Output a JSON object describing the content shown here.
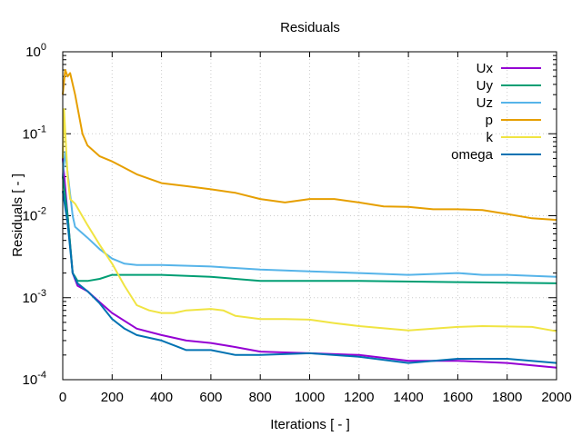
{
  "chart_data": {
    "type": "line",
    "title": "Residuals",
    "xlabel": "Iterations [ - ]",
    "ylabel": "Residuals [ - ]",
    "xlim": [
      0,
      2000
    ],
    "ylim": [
      0.0001,
      1
    ],
    "yscale": "log",
    "grid": true,
    "legend": "top-right",
    "xticks": [
      "0",
      "200",
      "400",
      "600",
      "800",
      "1000",
      "1200",
      "1400",
      "1600",
      "1800",
      "2000"
    ],
    "yticks": [
      {
        "base": "10",
        "exp": "-4"
      },
      {
        "base": "10",
        "exp": "-3"
      },
      {
        "base": "10",
        "exp": "-2"
      },
      {
        "base": "10",
        "exp": "-1"
      },
      {
        "base": "10",
        "exp": "0"
      }
    ],
    "series": [
      {
        "name": "Ux",
        "color": "#9400d3",
        "x": [
          0,
          20,
          40,
          60,
          100,
          150,
          200,
          300,
          400,
          500,
          600,
          700,
          800,
          1000,
          1200,
          1400,
          1600,
          1800,
          2000
        ],
        "y": [
          0.05,
          0.01,
          0.002,
          0.0014,
          0.0012,
          0.00088,
          0.00065,
          0.00042,
          0.00035,
          0.0003,
          0.00028,
          0.00025,
          0.00022,
          0.00021,
          0.0002,
          0.00017,
          0.00017,
          0.00016,
          0.00014
        ]
      },
      {
        "name": "Uy",
        "color": "#009e73",
        "x": [
          0,
          20,
          40,
          50,
          60,
          100,
          150,
          200,
          300,
          400,
          600,
          800,
          1000,
          1200,
          1600,
          2000
        ],
        "y": [
          0.03,
          0.01,
          0.002,
          0.0018,
          0.0016,
          0.0016,
          0.0017,
          0.0019,
          0.0019,
          0.0019,
          0.0018,
          0.0016,
          0.0016,
          0.0016,
          0.00155,
          0.0015
        ]
      },
      {
        "name": "Uz",
        "color": "#56b4e9",
        "x": [
          0,
          10,
          40,
          50,
          100,
          150,
          200,
          250,
          300,
          400,
          600,
          800,
          1000,
          1200,
          1400,
          1600,
          1700,
          1800,
          2000
        ],
        "y": [
          0.03,
          0.06,
          0.01,
          0.0073,
          0.0054,
          0.0039,
          0.003,
          0.0026,
          0.0025,
          0.0025,
          0.0024,
          0.0022,
          0.0021,
          0.002,
          0.0019,
          0.002,
          0.0019,
          0.0019,
          0.0018
        ]
      },
      {
        "name": "p",
        "color": "#e69f00",
        "x": [
          0,
          10,
          20,
          30,
          50,
          80,
          100,
          150,
          200,
          300,
          400,
          500,
          600,
          700,
          800,
          900,
          1000,
          1100,
          1200,
          1300,
          1400,
          1500,
          1600,
          1700,
          1800,
          1900,
          2000
        ],
        "y": [
          0.3,
          0.6,
          0.5,
          0.55,
          0.3,
          0.1,
          0.072,
          0.053,
          0.046,
          0.032,
          0.025,
          0.023,
          0.021,
          0.019,
          0.016,
          0.0145,
          0.016,
          0.016,
          0.0145,
          0.013,
          0.0128,
          0.012,
          0.012,
          0.0117,
          0.0105,
          0.0093,
          0.0089
        ]
      },
      {
        "name": "k",
        "color": "#f0e442",
        "x": [
          0,
          5,
          20,
          30,
          50,
          100,
          150,
          200,
          250,
          300,
          350,
          400,
          450,
          500,
          600,
          650,
          700,
          800,
          900,
          1000,
          1100,
          1200,
          1400,
          1600,
          1700,
          1900,
          2000
        ],
        "y": [
          0.05,
          0.2,
          0.03,
          0.016,
          0.014,
          0.0077,
          0.0044,
          0.0026,
          0.0014,
          0.00081,
          0.0007,
          0.00065,
          0.00065,
          0.0007,
          0.00073,
          0.0007,
          0.0006,
          0.00055,
          0.00055,
          0.00054,
          0.00049,
          0.00045,
          0.0004,
          0.00044,
          0.00045,
          0.00044,
          0.00039
        ]
      },
      {
        "name": "omega",
        "color": "#0072b2",
        "x": [
          0,
          20,
          40,
          60,
          100,
          150,
          200,
          250,
          300,
          400,
          500,
          600,
          700,
          800,
          1000,
          1200,
          1400,
          1600,
          1800,
          2000
        ],
        "y": [
          0.02,
          0.008,
          0.002,
          0.0015,
          0.0012,
          0.00085,
          0.00055,
          0.00042,
          0.00035,
          0.0003,
          0.00023,
          0.00023,
          0.0002,
          0.0002,
          0.00021,
          0.00019,
          0.00016,
          0.00018,
          0.00018,
          0.00016
        ]
      }
    ]
  }
}
